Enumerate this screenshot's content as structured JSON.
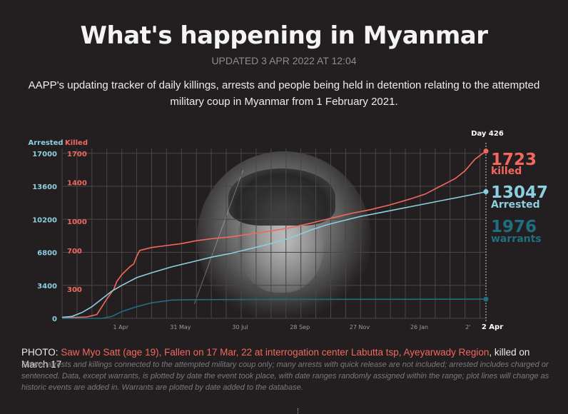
{
  "header": {
    "title": "What's happening in Myanmar",
    "updated": "UPDATED 3 APR 2022 AT 12:04",
    "description": "AAPP's updating tracker of daily killings, arrests and people being held in detention relating to the attempted military coup in Myanmar from 1 February 2021."
  },
  "chart_data": {
    "type": "line",
    "title": "",
    "day_label": "Day 426",
    "x_ticks": [
      "1 Apr",
      "31 May",
      "30 Jul",
      "28 Sep",
      "27 Nov",
      "26 Jan",
      "2'",
      "2 Apr"
    ],
    "y_left": {
      "label": "Arrested",
      "ticks": [
        "17000",
        "13600",
        "10200",
        "6800",
        "3400",
        "0"
      ],
      "ylim": [
        0,
        17500
      ]
    },
    "y_right": {
      "label": "Killed",
      "ticks": [
        "1700",
        "1400",
        "1000",
        "700",
        "300"
      ],
      "ylim": [
        0,
        1750
      ]
    },
    "x_unit": "day",
    "xlim": [
      0,
      426
    ],
    "series": [
      {
        "name": "killed",
        "axis": "right",
        "color": "#f2685e",
        "final": "1723",
        "points": [
          [
            0,
            5
          ],
          [
            15,
            10
          ],
          [
            25,
            15
          ],
          [
            35,
            40
          ],
          [
            40,
            120
          ],
          [
            45,
            200
          ],
          [
            52,
            300
          ],
          [
            55,
            380
          ],
          [
            60,
            450
          ],
          [
            68,
            530
          ],
          [
            72,
            560
          ],
          [
            75,
            640
          ],
          [
            78,
            700
          ],
          [
            90,
            730
          ],
          [
            105,
            750
          ],
          [
            120,
            770
          ],
          [
            135,
            800
          ],
          [
            150,
            820
          ],
          [
            170,
            840
          ],
          [
            190,
            870
          ],
          [
            210,
            900
          ],
          [
            230,
            935
          ],
          [
            250,
            980
          ],
          [
            270,
            1030
          ],
          [
            290,
            1080
          ],
          [
            310,
            1120
          ],
          [
            330,
            1170
          ],
          [
            350,
            1230
          ],
          [
            365,
            1280
          ],
          [
            380,
            1360
          ],
          [
            395,
            1440
          ],
          [
            405,
            1520
          ],
          [
            415,
            1640
          ],
          [
            426,
            1723
          ]
        ]
      },
      {
        "name": "Arrested",
        "axis": "left",
        "color": "#8ccfe0",
        "final": "13047",
        "points": [
          [
            0,
            100
          ],
          [
            10,
            200
          ],
          [
            20,
            600
          ],
          [
            30,
            1200
          ],
          [
            40,
            2000
          ],
          [
            50,
            2800
          ],
          [
            60,
            3400
          ],
          [
            75,
            4200
          ],
          [
            90,
            4700
          ],
          [
            110,
            5300
          ],
          [
            130,
            5800
          ],
          [
            150,
            6300
          ],
          [
            170,
            6700
          ],
          [
            190,
            7200
          ],
          [
            210,
            7700
          ],
          [
            230,
            8300
          ],
          [
            250,
            9100
          ],
          [
            265,
            9600
          ],
          [
            280,
            10000
          ],
          [
            300,
            10500
          ],
          [
            320,
            10900
          ],
          [
            340,
            11300
          ],
          [
            360,
            11700
          ],
          [
            380,
            12100
          ],
          [
            400,
            12500
          ],
          [
            415,
            12800
          ],
          [
            426,
            13047
          ]
        ]
      },
      {
        "name": "warrants",
        "axis": "left",
        "color": "#1f6f80",
        "final": "1976",
        "points": [
          [
            0,
            0
          ],
          [
            40,
            0
          ],
          [
            50,
            200
          ],
          [
            60,
            700
          ],
          [
            75,
            1200
          ],
          [
            90,
            1600
          ],
          [
            110,
            1880
          ],
          [
            130,
            1930
          ],
          [
            200,
            1950
          ],
          [
            300,
            1965
          ],
          [
            426,
            1976
          ]
        ]
      }
    ],
    "labels": {
      "killed_value": "1723",
      "killed_word": "killed",
      "arrested_value": "13047",
      "arrested_word": "Arrested",
      "warrants_value": "1976",
      "warrants_word": "warrants"
    }
  },
  "caption": {
    "prefix": "PHOTO: ",
    "photo_subject": "Saw Myo Satt (age 19), Fallen on 17 Mar, 22 at interrogation center Labutta tsp, Ayeyarwady Region",
    "suffix": ", killed on March 17",
    "notes": "Shows arrests and killings connected to the attempted military coup only; many arrests with quick release are not included; arrested includes charged or sentenced. Data, except warrants, is plotted by date the event took place, with date ranges randomly assigned within the range; plot lines will change as historic events are added in. Warrants are plotted by date added to the database."
  },
  "colors": {
    "background": "#231f20",
    "killed": "#f2685e",
    "arrested": "#8ccfe0",
    "warrants": "#1f6f80"
  }
}
